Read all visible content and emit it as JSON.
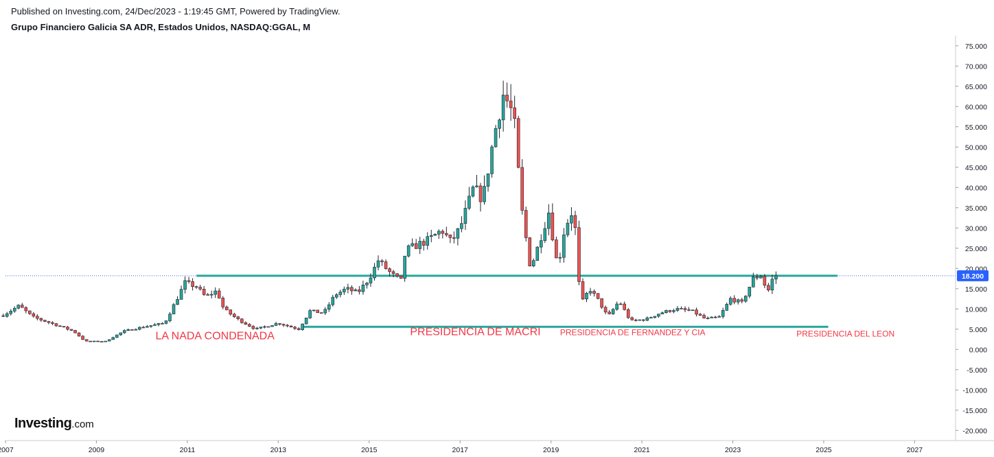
{
  "header": {
    "published": "Published on Investing.com, 24/Dec/2023 - 1:19:45 GMT, Powered by TradingView.",
    "symbol_title": "Grupo Financiero Galicia SA ADR, Estados Unidos, NASDAQ:GGAL, M"
  },
  "logo": {
    "brand": "Investing",
    "suffix": ".com"
  },
  "chart_data": {
    "type": "candlestick",
    "interval": "M",
    "colors": {
      "up": "#26a69a",
      "down": "#ef5350",
      "lines": "#26a69a",
      "price_line": "#2962ff",
      "annotation": "#f23645"
    },
    "xlim": [
      2007.0,
      2027.9
    ],
    "ylim": [
      -22.5,
      77.5
    ],
    "y_ticks": [
      "75.000",
      "70.000",
      "65.000",
      "60.000",
      "55.000",
      "50.000",
      "45.000",
      "40.000",
      "35.000",
      "30.000",
      "25.000",
      "20.000",
      "15.000",
      "10.000",
      "5.000",
      "0.000",
      "-5.000",
      "-10.000",
      "-15.000",
      "-20.000"
    ],
    "x_ticks": [
      "2007",
      "2009",
      "2011",
      "2013",
      "2015",
      "2017",
      "2019",
      "2021",
      "2023",
      "2025",
      "2027"
    ],
    "last_price": "18.200",
    "last_price_value": 18.2,
    "horizontal_lines": [
      {
        "x0": 2011.2,
        "x1": 2025.3,
        "y": 18.2
      },
      {
        "x0": 2013.5,
        "x1": 2025.1,
        "y": 5.6
      }
    ],
    "annotations": [
      {
        "text": "LA NADA CONDENADA",
        "x": 2010.3,
        "y": 2.5,
        "size": "large"
      },
      {
        "text": "PRESIDENCIA DE MACRI",
        "x": 2015.9,
        "y": 3.5,
        "size": "large"
      },
      {
        "text": "PRESIDENCIA DE FERNANDEZ Y CIA",
        "x": 2019.2,
        "y": 3.5,
        "size": "small"
      },
      {
        "text": "PRESIDENCIA DEL LEON",
        "x": 2024.4,
        "y": 3.2,
        "size": "small"
      }
    ],
    "close_anchors": [
      [
        2006.95,
        8.5
      ],
      [
        2007.3,
        10.8
      ],
      [
        2007.6,
        8.0
      ],
      [
        2008.0,
        6.5
      ],
      [
        2008.5,
        4.5
      ],
      [
        2008.75,
        2.0
      ],
      [
        2009.2,
        2.0
      ],
      [
        2009.6,
        4.5
      ],
      [
        2010.0,
        5.5
      ],
      [
        2010.5,
        6.5
      ],
      [
        2010.75,
        12.0
      ],
      [
        2010.95,
        16.5
      ],
      [
        2011.2,
        15.5
      ],
      [
        2011.4,
        13.0
      ],
      [
        2011.65,
        14.5
      ],
      [
        2011.8,
        10.0
      ],
      [
        2012.1,
        7.5
      ],
      [
        2012.5,
        5.0
      ],
      [
        2013.0,
        6.5
      ],
      [
        2013.45,
        5.0
      ],
      [
        2013.7,
        9.5
      ],
      [
        2014.0,
        9.0
      ],
      [
        2014.25,
        13.5
      ],
      [
        2014.5,
        15.0
      ],
      [
        2014.75,
        14.0
      ],
      [
        2015.0,
        17.5
      ],
      [
        2015.2,
        22.0
      ],
      [
        2015.5,
        18.5
      ],
      [
        2015.7,
        17.0
      ],
      [
        2015.8,
        24.5
      ],
      [
        2016.3,
        27.0
      ],
      [
        2016.6,
        29.5
      ],
      [
        2016.8,
        26.5
      ],
      [
        2017.0,
        30.0
      ],
      [
        2017.3,
        40.0
      ],
      [
        2017.5,
        37.0
      ],
      [
        2017.75,
        53.0
      ],
      [
        2017.95,
        63.0
      ],
      [
        2018.1,
        60.0
      ],
      [
        2018.2,
        55.0
      ],
      [
        2018.35,
        35.0
      ],
      [
        2018.55,
        20.0
      ],
      [
        2018.7,
        25.0
      ],
      [
        2018.95,
        34.0
      ],
      [
        2019.15,
        20.0
      ],
      [
        2019.3,
        30.0
      ],
      [
        2019.5,
        35.0
      ],
      [
        2019.65,
        11.0
      ],
      [
        2019.85,
        15.0
      ],
      [
        2020.05,
        12.0
      ],
      [
        2020.25,
        8.0
      ],
      [
        2020.5,
        12.0
      ],
      [
        2020.75,
        7.0
      ],
      [
        2021.1,
        7.5
      ],
      [
        2021.4,
        9.0
      ],
      [
        2021.75,
        10.0
      ],
      [
        2022.1,
        9.5
      ],
      [
        2022.4,
        7.5
      ],
      [
        2022.7,
        8.0
      ],
      [
        2022.95,
        12.5
      ],
      [
        2023.2,
        11.5
      ],
      [
        2023.45,
        17.5
      ],
      [
        2023.65,
        18.5
      ],
      [
        2023.75,
        13.5
      ],
      [
        2023.85,
        17.0
      ],
      [
        2023.95,
        18.2
      ]
    ]
  }
}
